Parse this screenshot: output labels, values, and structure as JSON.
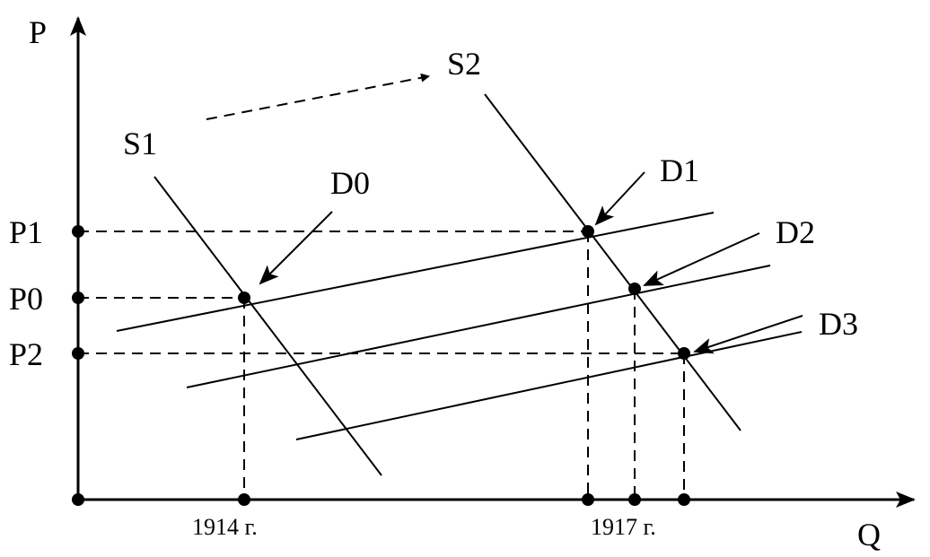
{
  "axes": {
    "y_label": "P",
    "x_label": "Q"
  },
  "price_labels": {
    "p1": "P1",
    "p0": "P0",
    "p2": "P2"
  },
  "year_labels": {
    "y1914": "1914 г.",
    "y1917": "1917 г."
  },
  "curve_labels": {
    "s1": "S1",
    "s2": "S2",
    "d0": "D0",
    "d1": "D1",
    "d2": "D2",
    "d3": "D3"
  }
}
